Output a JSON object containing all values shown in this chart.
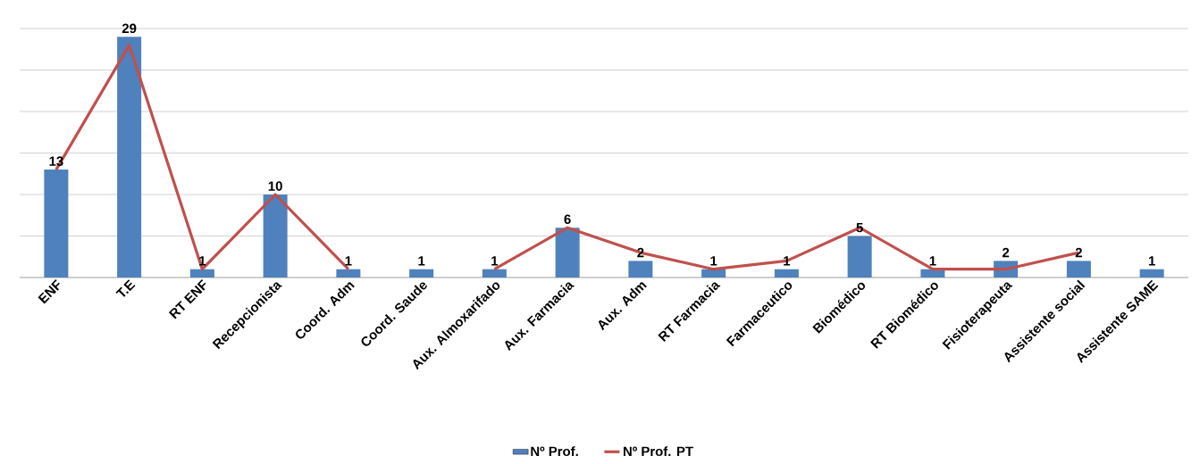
{
  "chart_data": {
    "type": "bar",
    "categories": [
      "ENF",
      "T.E",
      "RT ENF",
      "Recepcionista",
      "Coord. Adm",
      "Coord. Saude",
      "Aux. Almoxarifado",
      "Aux. Farmacia",
      "Aux. Adm",
      "RT Farmacia",
      "Farmaceutico",
      "Biomédico",
      "RT Biomédico",
      "Fisioterapeuta",
      "Assistente social",
      "Assistente SAME"
    ],
    "series": [
      {
        "name": "Nº Prof.",
        "color": "#4f81bd",
        "values": [
          13,
          29,
          1,
          10,
          1,
          1,
          1,
          6,
          2,
          1,
          1,
          5,
          1,
          2,
          2,
          1
        ],
        "value_labels": [
          "13",
          "29",
          "1",
          "10",
          "1",
          "1",
          "1",
          "6",
          "2",
          "1",
          "1",
          "5",
          "1",
          "2",
          "2",
          "1"
        ]
      },
      {
        "name": "Nº Prof. PT",
        "type": "line",
        "color": "#c0504d",
        "values": [
          13,
          28,
          1,
          10,
          1,
          null,
          1,
          6,
          3,
          1,
          2,
          6,
          1,
          1,
          3,
          null
        ]
      }
    ],
    "ylim": [
      0,
      30
    ],
    "yticks": [
      {
        "value": 0,
        "label": null
      },
      {
        "value": 5,
        "label": null
      },
      {
        "value": 10,
        "label": null
      },
      {
        "value": 15,
        "label": null
      },
      {
        "value": 20,
        "label": null
      },
      {
        "value": 25,
        "label": null
      },
      {
        "value": 30,
        "label": null
      }
    ],
    "tick_labels": "x",
    "grid": "y",
    "legend": "bottom",
    "marker": "none",
    "line_style": "solid"
  }
}
